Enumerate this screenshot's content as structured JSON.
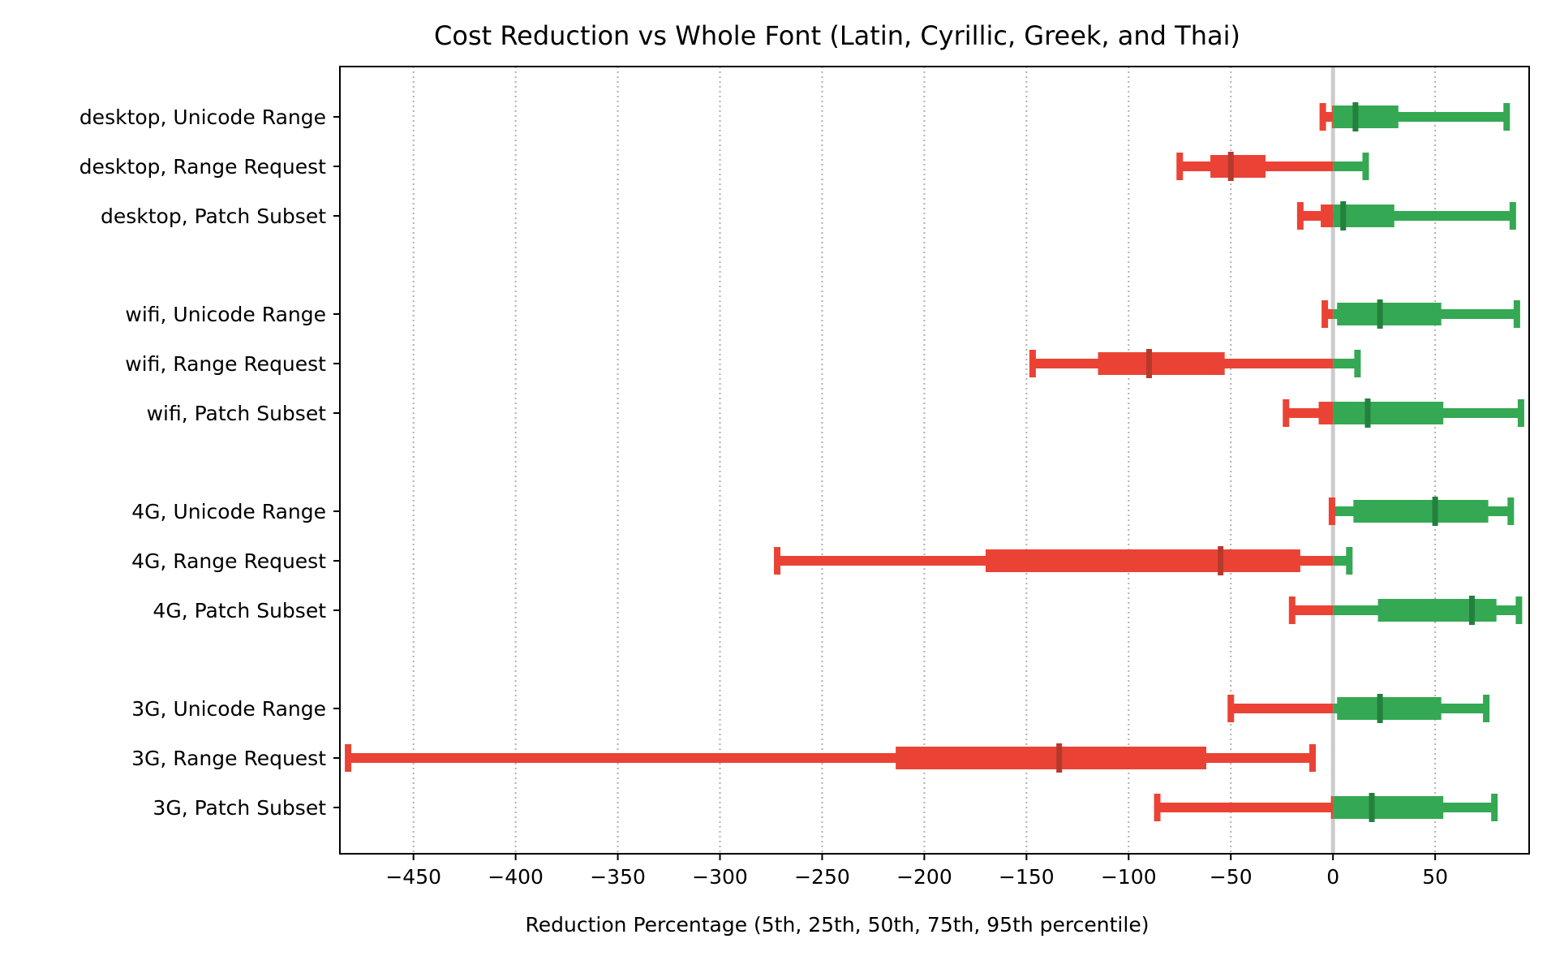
{
  "chart_data": {
    "type": "box",
    "title": "Cost Reduction vs Whole Font (Latin, Cyrillic, Greek, and Thai)",
    "xlabel": "Reduction Percentage (5th, 25th, 50th, 75th, 95th percentile)",
    "ylabel": "",
    "xlim": [
      -486,
      96
    ],
    "xticks": [
      -450,
      -400,
      -350,
      -300,
      -250,
      -200,
      -150,
      -100,
      -50,
      0,
      50
    ],
    "grid": "x-dotted",
    "colors": {
      "negative": "#ea4335",
      "positive": "#34a853",
      "median_negative": "#b53a2c",
      "median_positive": "#24803d",
      "zero_line": "#cccccc"
    },
    "series": [
      {
        "name": "desktop, Unicode Range",
        "p5": -5,
        "p25": -0.5,
        "p50": 11,
        "p75": 32,
        "p95": 85
      },
      {
        "name": "desktop, Range Request",
        "p5": -75,
        "p25": -60,
        "p50": -50,
        "p75": -33,
        "p95": 16
      },
      {
        "name": "desktop, Patch Subset",
        "p5": -16,
        "p25": -6,
        "p50": 5,
        "p75": 30,
        "p95": 88
      },
      {
        "name": "wifi, Unicode Range",
        "p5": -4,
        "p25": 2,
        "p50": 23,
        "p75": 53,
        "p95": 90
      },
      {
        "name": "wifi, Range Request",
        "p5": -147,
        "p25": -115,
        "p50": -90,
        "p75": -53,
        "p95": 12
      },
      {
        "name": "wifi, Patch Subset",
        "p5": -23,
        "p25": -7,
        "p50": 17,
        "p75": 54,
        "p95": 92
      },
      {
        "name": "4G, Unicode Range",
        "p5": -0.5,
        "p25": 10,
        "p50": 50,
        "p75": 76,
        "p95": 87
      },
      {
        "name": "4G, Range Request",
        "p5": -272,
        "p25": -170,
        "p50": -55,
        "p75": -16,
        "p95": 8
      },
      {
        "name": "4G, Patch Subset",
        "p5": -20,
        "p25": 22,
        "p50": 68,
        "p75": 80,
        "p95": 91
      },
      {
        "name": "3G, Unicode Range",
        "p5": -50,
        "p25": 2,
        "p50": 23,
        "p75": 53,
        "p95": 75
      },
      {
        "name": "3G, Range Request",
        "p5": -482,
        "p25": -214,
        "p50": -134,
        "p75": -62,
        "p95": -10
      },
      {
        "name": "3G, Patch Subset",
        "p5": -86,
        "p25": -1,
        "p50": 19,
        "p75": 54,
        "p95": 79
      }
    ]
  }
}
